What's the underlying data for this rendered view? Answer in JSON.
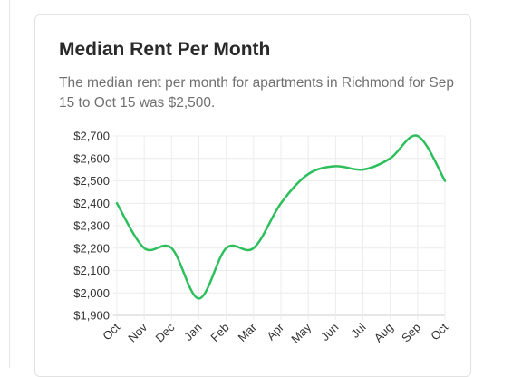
{
  "card": {
    "title": "Median Rent Per Month",
    "description": "The median rent per month for apartments in Richmond for Sep 15 to Oct 15 was $2,500."
  },
  "colors": {
    "line": "#2cbf5c",
    "grid": "#ececec",
    "axis": "#cfcfcf"
  },
  "chart_data": {
    "type": "line",
    "title": "",
    "xlabel": "",
    "ylabel": "",
    "ylim": [
      1900,
      2700
    ],
    "y_ticks": [
      1900,
      2000,
      2100,
      2200,
      2300,
      2400,
      2500,
      2600,
      2700
    ],
    "y_tick_labels": [
      "$1,900",
      "$2,000",
      "$2,100",
      "$2,200",
      "$2,300",
      "$2,400",
      "$2,500",
      "$2,600",
      "$2,700"
    ],
    "categories": [
      "Oct",
      "Nov",
      "Dec",
      "Jan",
      "Feb",
      "Mar",
      "Apr",
      "May",
      "Jun",
      "Jul",
      "Aug",
      "Sep",
      "Oct"
    ],
    "grid": true,
    "legend": "none",
    "series": [
      {
        "values": [
          2400,
          2200,
          2200,
          1975,
          2200,
          2200,
          2400,
          2530,
          2565,
          2550,
          2600,
          2700,
          2500
        ]
      }
    ]
  }
}
